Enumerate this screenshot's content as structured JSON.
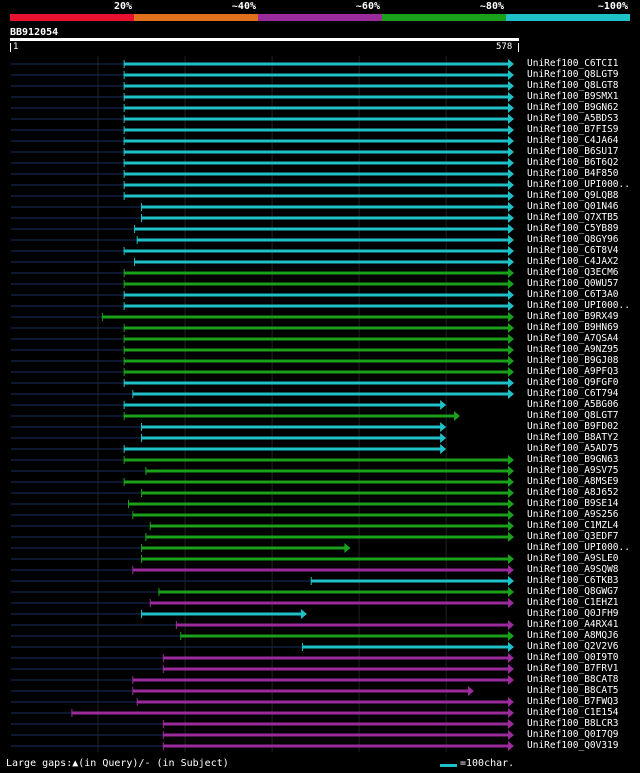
{
  "legend": [
    {
      "label": "20%",
      "color": "#e8112f"
    },
    {
      "label": "~40%",
      "color": "#e0701c"
    },
    {
      "label": "~60%",
      "color": "#9b2b9b"
    },
    {
      "label": "~80%",
      "color": "#1aa01a"
    },
    {
      "label": "~100%",
      "color": "#1fc0c8"
    }
  ],
  "query": {
    "name": "BB912054",
    "start": "1",
    "end": "578"
  },
  "hits": [
    {
      "name": "UniRef100_C6TCI1",
      "color": "#1fc0c8",
      "start": 130,
      "end": 578
    },
    {
      "name": "UniRef100_Q8LGT9",
      "color": "#1fc0c8",
      "start": 130,
      "end": 578
    },
    {
      "name": "UniRef100_Q8LGT8",
      "color": "#1fc0c8",
      "start": 130,
      "end": 578
    },
    {
      "name": "UniRef100_B9SMX1",
      "color": "#1fc0c8",
      "start": 130,
      "end": 578
    },
    {
      "name": "UniRef100_B9GN62",
      "color": "#1fc0c8",
      "start": 130,
      "end": 578
    },
    {
      "name": "UniRef100_A5BDS3",
      "color": "#1fc0c8",
      "start": 130,
      "end": 578
    },
    {
      "name": "UniRef100_B7FIS9",
      "color": "#1fc0c8",
      "start": 130,
      "end": 578
    },
    {
      "name": "UniRef100_C4JA64",
      "color": "#1fc0c8",
      "start": 130,
      "end": 578
    },
    {
      "name": "UniRef100_B6SU17",
      "color": "#1fc0c8",
      "start": 130,
      "end": 578
    },
    {
      "name": "UniRef100_B6T6Q2",
      "color": "#1fc0c8",
      "start": 130,
      "end": 578
    },
    {
      "name": "UniRef100_B4F850",
      "color": "#1fc0c8",
      "start": 130,
      "end": 578
    },
    {
      "name": "UniRef100_UPI000..",
      "color": "#1fc0c8",
      "start": 130,
      "end": 578
    },
    {
      "name": "UniRef100_Q9LQB8",
      "color": "#1fc0c8",
      "start": 130,
      "end": 578
    },
    {
      "name": "UniRef100_Q01N46",
      "color": "#1fc0c8",
      "start": 150,
      "end": 578
    },
    {
      "name": "UniRef100_Q7XTB5",
      "color": "#1fc0c8",
      "start": 150,
      "end": 578
    },
    {
      "name": "UniRef100_C5YB89",
      "color": "#1fc0c8",
      "start": 142,
      "end": 578
    },
    {
      "name": "UniRef100_Q8GY96",
      "color": "#1fc0c8",
      "start": 145,
      "end": 578
    },
    {
      "name": "UniRef100_C6T8V4",
      "color": "#1fc0c8",
      "start": 130,
      "end": 578
    },
    {
      "name": "UniRef100_C4JAX2",
      "color": "#1fc0c8",
      "start": 142,
      "end": 578
    },
    {
      "name": "UniRef100_Q3ECM6",
      "color": "#1aa01a",
      "start": 130,
      "end": 578
    },
    {
      "name": "UniRef100_Q0WU57",
      "color": "#1aa01a",
      "start": 130,
      "end": 578
    },
    {
      "name": "UniRef100_C6T3A0",
      "color": "#1fc0c8",
      "start": 130,
      "end": 578
    },
    {
      "name": "UniRef100_UPI000..",
      "color": "#1fc0c8",
      "start": 130,
      "end": 578
    },
    {
      "name": "UniRef100_B9RX49",
      "color": "#1aa01a",
      "start": 105,
      "end": 578
    },
    {
      "name": "UniRef100_B9HN69",
      "color": "#1aa01a",
      "start": 130,
      "end": 578
    },
    {
      "name": "UniRef100_A7QSA4",
      "color": "#1aa01a",
      "start": 130,
      "end": 578
    },
    {
      "name": "UniRef100_A9NZ95",
      "color": "#1aa01a",
      "start": 130,
      "end": 578
    },
    {
      "name": "UniRef100_B9GJ08",
      "color": "#1aa01a",
      "start": 130,
      "end": 578
    },
    {
      "name": "UniRef100_A9PFQ3",
      "color": "#1aa01a",
      "start": 130,
      "end": 578
    },
    {
      "name": "UniRef100_Q9FGF0",
      "color": "#1fc0c8",
      "start": 130,
      "end": 578
    },
    {
      "name": "UniRef100_C6T794",
      "color": "#1fc0c8",
      "start": 140,
      "end": 578
    },
    {
      "name": "UniRef100_A5BG06",
      "color": "#1fc0c8",
      "start": 130,
      "end": 500
    },
    {
      "name": "UniRef100_Q8LGT7",
      "color": "#1aa01a",
      "start": 130,
      "end": 516
    },
    {
      "name": "UniRef100_B9FD02",
      "color": "#1fc0c8",
      "start": 150,
      "end": 500
    },
    {
      "name": "UniRef100_B8ATY2",
      "color": "#1fc0c8",
      "start": 150,
      "end": 500
    },
    {
      "name": "UniRef100_A5AD75",
      "color": "#1fc0c8",
      "start": 130,
      "end": 500
    },
    {
      "name": "UniRef100_B9GN63",
      "color": "#1aa01a",
      "start": 130,
      "end": 578
    },
    {
      "name": "UniRef100_A9SV75",
      "color": "#1aa01a",
      "start": 155,
      "end": 578
    },
    {
      "name": "UniRef100_A8MSE9",
      "color": "#1aa01a",
      "start": 130,
      "end": 578
    },
    {
      "name": "UniRef100_A8J652",
      "color": "#1aa01a",
      "start": 150,
      "end": 578
    },
    {
      "name": "UniRef100_B9SE14",
      "color": "#1aa01a",
      "start": 135,
      "end": 578
    },
    {
      "name": "UniRef100_A9S256",
      "color": "#1aa01a",
      "start": 140,
      "end": 578
    },
    {
      "name": "UniRef100_C1MZL4",
      "color": "#1aa01a",
      "start": 160,
      "end": 578
    },
    {
      "name": "UniRef100_Q3EDF7",
      "color": "#1aa01a",
      "start": 155,
      "end": 578
    },
    {
      "name": "UniRef100_UPI000..",
      "color": "#1aa01a",
      "start": 150,
      "end": 390
    },
    {
      "name": "UniRef100_A9SLE0",
      "color": "#1aa01a",
      "start": 150,
      "end": 578
    },
    {
      "name": "UniRef100_A9SQW8",
      "color": "#9b2b9b",
      "start": 140,
      "end": 578
    },
    {
      "name": "UniRef100_C6TKB3",
      "color": "#1fc0c8",
      "start": 345,
      "end": 578
    },
    {
      "name": "UniRef100_Q8GWG7",
      "color": "#1aa01a",
      "start": 170,
      "end": 578
    },
    {
      "name": "UniRef100_C1EHZ1",
      "color": "#9b2b9b",
      "start": 160,
      "end": 578
    },
    {
      "name": "UniRef100_Q0JFH9",
      "color": "#1fc0c8",
      "start": 150,
      "end": 340
    },
    {
      "name": "UniRef100_A4RX41",
      "color": "#9b2b9b",
      "start": 190,
      "end": 578
    },
    {
      "name": "UniRef100_A8MQJ6",
      "color": "#1aa01a",
      "start": 195,
      "end": 578
    },
    {
      "name": "UniRef100_Q2V2V6",
      "color": "#1fc0c8",
      "start": 335,
      "end": 578
    },
    {
      "name": "UniRef100_Q0I9T0",
      "color": "#9b2b9b",
      "start": 175,
      "end": 578
    },
    {
      "name": "UniRef100_B7FRV1",
      "color": "#9b2b9b",
      "start": 175,
      "end": 578
    },
    {
      "name": "UniRef100_B8CAT8",
      "color": "#9b2b9b",
      "start": 140,
      "end": 578
    },
    {
      "name": "UniRef100_B8CAT5",
      "color": "#9b2b9b",
      "start": 140,
      "end": 532
    },
    {
      "name": "UniRef100_B7FWQ3",
      "color": "#9b2b9b",
      "start": 145,
      "end": 578
    },
    {
      "name": "UniRef100_C1E154",
      "color": "#9b2b9b",
      "start": 70,
      "end": 578
    },
    {
      "name": "UniRef100_B8LCR3",
      "color": "#9b2b9b",
      "start": 175,
      "end": 578
    },
    {
      "name": "UniRef100_Q0I7Q9",
      "color": "#9b2b9b",
      "start": 175,
      "end": 578
    },
    {
      "name": "UniRef100_Q0V319",
      "color": "#9b2b9b",
      "start": 175,
      "end": 578
    }
  ],
  "footer": {
    "text": "Large gaps:▲(in Query)/- (in Subject)",
    "scale_label": "=100char."
  }
}
